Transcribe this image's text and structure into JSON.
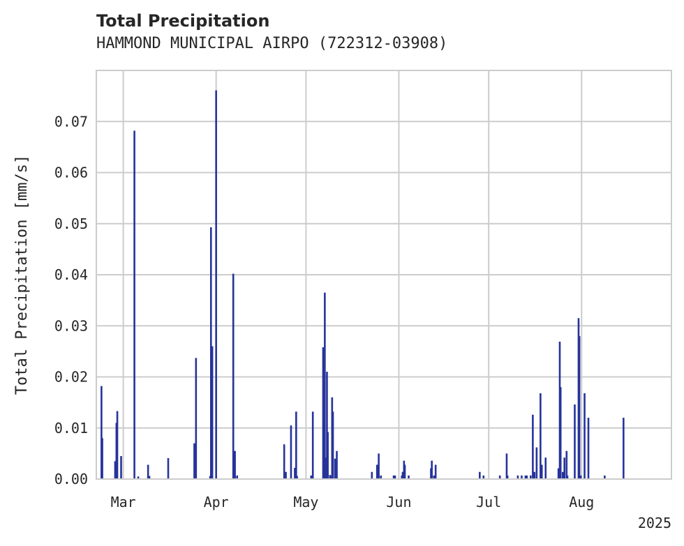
{
  "header": {
    "title": "Total Precipitation",
    "subtitle": "HAMMOND MUNICIPAL AIRPO (722312-03908)"
  },
  "colors": {
    "bar": "#26339a",
    "grid": "#cccccc",
    "frame": "#cccccc",
    "text": "#262626"
  },
  "chart_data": {
    "type": "bar",
    "title": "Total Precipitation",
    "subtitle": "HAMMOND MUNICIPAL AIRPO (722312-03908)",
    "ylabel": "Total Precipitation [mm/s]",
    "xlabel": "",
    "grid": true,
    "ylim": [
      0,
      0.08
    ],
    "xlim": [
      "2025-02-20",
      "2025-08-31"
    ],
    "yticks": [
      "0.00",
      "0.01",
      "0.02",
      "0.03",
      "0.04",
      "0.05",
      "0.06",
      "0.07"
    ],
    "xticks": [
      {
        "label": "Mar",
        "date": "2025-03-01"
      },
      {
        "label": "Apr",
        "date": "2025-04-01"
      },
      {
        "label": "May",
        "date": "2025-05-01"
      },
      {
        "label": "Jun",
        "date": "2025-06-01"
      },
      {
        "label": "Jul",
        "date": "2025-07-01"
      },
      {
        "label": "Aug",
        "date": "2025-08-01"
      }
    ],
    "x_offset_label": "2025",
    "series": [
      {
        "values": [
          [
            "2025-02-22",
            0.0182
          ],
          [
            "2025-02-22",
            0.008
          ],
          [
            "2025-02-26",
            0.0035
          ],
          [
            "2025-02-27",
            0.011
          ],
          [
            "2025-02-27",
            0.0133
          ],
          [
            "2025-02-28",
            0.0045
          ],
          [
            "2025-03-05",
            0.0682
          ],
          [
            "2025-03-06",
            0.0005
          ],
          [
            "2025-03-09",
            0.0028
          ],
          [
            "2025-03-10",
            0.0006
          ],
          [
            "2025-03-16",
            0.0041
          ],
          [
            "2025-03-25",
            0.0237
          ],
          [
            "2025-03-25",
            0.007
          ],
          [
            "2025-03-30",
            0.0006
          ],
          [
            "2025-03-30",
            0.0493
          ],
          [
            "2025-03-31",
            0.026
          ],
          [
            "2025-04-01",
            0.0761
          ],
          [
            "2025-04-07",
            0.0055
          ],
          [
            "2025-04-07",
            0.0402
          ],
          [
            "2025-04-08",
            0.0007
          ],
          [
            "2025-04-24",
            0.0014
          ],
          [
            "2025-04-24",
            0.0068
          ],
          [
            "2025-04-26",
            0.0105
          ],
          [
            "2025-04-27",
            0.0022
          ],
          [
            "2025-04-28",
            0.0132
          ],
          [
            "2025-04-28",
            0.0006
          ],
          [
            "2025-05-03",
            0.0132
          ],
          [
            "2025-05-03",
            0.0007
          ],
          [
            "2025-05-07",
            0.0115
          ],
          [
            "2025-05-07",
            0.0365
          ],
          [
            "2025-05-07",
            0.0258
          ],
          [
            "2025-05-08",
            0.021
          ],
          [
            "2025-05-08",
            0.0092
          ],
          [
            "2025-05-08",
            0.0042
          ],
          [
            "2025-05-09",
            0.0008
          ],
          [
            "2025-05-09",
            0.0006
          ],
          [
            "2025-05-10",
            0.016
          ],
          [
            "2025-05-10",
            0.0132
          ],
          [
            "2025-05-11",
            0.0055
          ],
          [
            "2025-05-11",
            0.004
          ],
          [
            "2025-05-23",
            0.0014
          ],
          [
            "2025-05-25",
            0.005
          ],
          [
            "2025-05-25",
            0.0028
          ],
          [
            "2025-05-26",
            0.0007
          ],
          [
            "2025-05-30",
            0.0007
          ],
          [
            "2025-05-31",
            0.0007
          ],
          [
            "2025-06-02",
            0.0007
          ],
          [
            "2025-06-02",
            0.0014
          ],
          [
            "2025-06-03",
            0.0036
          ],
          [
            "2025-06-03",
            0.0028
          ],
          [
            "2025-06-04",
            0.0007
          ],
          [
            "2025-06-12",
            0.0021
          ],
          [
            "2025-06-12",
            0.0036
          ],
          [
            "2025-06-13",
            0.0028
          ],
          [
            "2025-06-13",
            0.0007
          ],
          [
            "2025-06-28",
            0.0014
          ],
          [
            "2025-06-29",
            0.0007
          ],
          [
            "2025-07-05",
            0.0007
          ],
          [
            "2025-07-07",
            0.005
          ],
          [
            "2025-07-07",
            0.0007
          ],
          [
            "2025-07-11",
            0.0007
          ],
          [
            "2025-07-12",
            0.0007
          ],
          [
            "2025-07-13",
            0.0007
          ],
          [
            "2025-07-14",
            0.0007
          ],
          [
            "2025-07-15",
            0.0007
          ],
          [
            "2025-07-16",
            0.0014
          ],
          [
            "2025-07-16",
            0.0126
          ],
          [
            "2025-07-17",
            0.0062
          ],
          [
            "2025-07-18",
            0.0168
          ],
          [
            "2025-07-19",
            0.0028
          ],
          [
            "2025-07-20",
            0.0042
          ],
          [
            "2025-07-24",
            0.0021
          ],
          [
            "2025-07-25",
            0.0269
          ],
          [
            "2025-07-25",
            0.018
          ],
          [
            "2025-07-26",
            0.0042
          ],
          [
            "2025-07-26",
            0.0014
          ],
          [
            "2025-07-27",
            0.0055
          ],
          [
            "2025-07-27",
            0.0007
          ],
          [
            "2025-07-30",
            0.0146
          ],
          [
            "2025-07-31",
            0.0315
          ],
          [
            "2025-07-31",
            0.028
          ],
          [
            "2025-08-01",
            0.0007
          ],
          [
            "2025-08-02",
            0.0168
          ],
          [
            "2025-08-03",
            0.012
          ],
          [
            "2025-08-09",
            0.0007
          ],
          [
            "2025-08-15",
            0.012
          ]
        ]
      }
    ]
  }
}
